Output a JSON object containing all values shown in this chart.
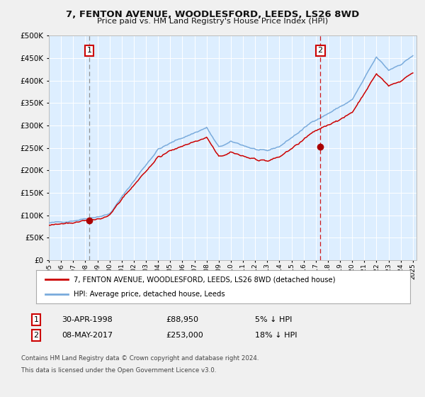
{
  "title": "7, FENTON AVENUE, WOODLESFORD, LEEDS, LS26 8WD",
  "subtitle": "Price paid vs. HM Land Registry's House Price Index (HPI)",
  "legend_line1": "7, FENTON AVENUE, WOODLESFORD, LEEDS, LS26 8WD (detached house)",
  "legend_line2": "HPI: Average price, detached house, Leeds",
  "annotation1_date": "30-APR-1998",
  "annotation1_price": "£88,950",
  "annotation1_hpi": "5% ↓ HPI",
  "annotation2_date": "08-MAY-2017",
  "annotation2_price": "£253,000",
  "annotation2_hpi": "18% ↓ HPI",
  "footer1": "Contains HM Land Registry data © Crown copyright and database right 2024.",
  "footer2": "This data is licensed under the Open Government Licence v3.0.",
  "hpi_color": "#7aabdc",
  "property_color": "#cc0000",
  "dot_color": "#aa0000",
  "vline1_color": "#888888",
  "vline2_color": "#cc0000",
  "bg_color": "#ddeeff",
  "grid_color": "#ffffff",
  "fig_bg": "#f0f0f0",
  "ylim": [
    0,
    500000
  ],
  "yticks": [
    0,
    50000,
    100000,
    150000,
    200000,
    250000,
    300000,
    350000,
    400000,
    450000,
    500000
  ],
  "sale1_year": 1998.33,
  "sale1_price": 88950,
  "sale2_year": 2017.37,
  "sale2_price": 253000
}
